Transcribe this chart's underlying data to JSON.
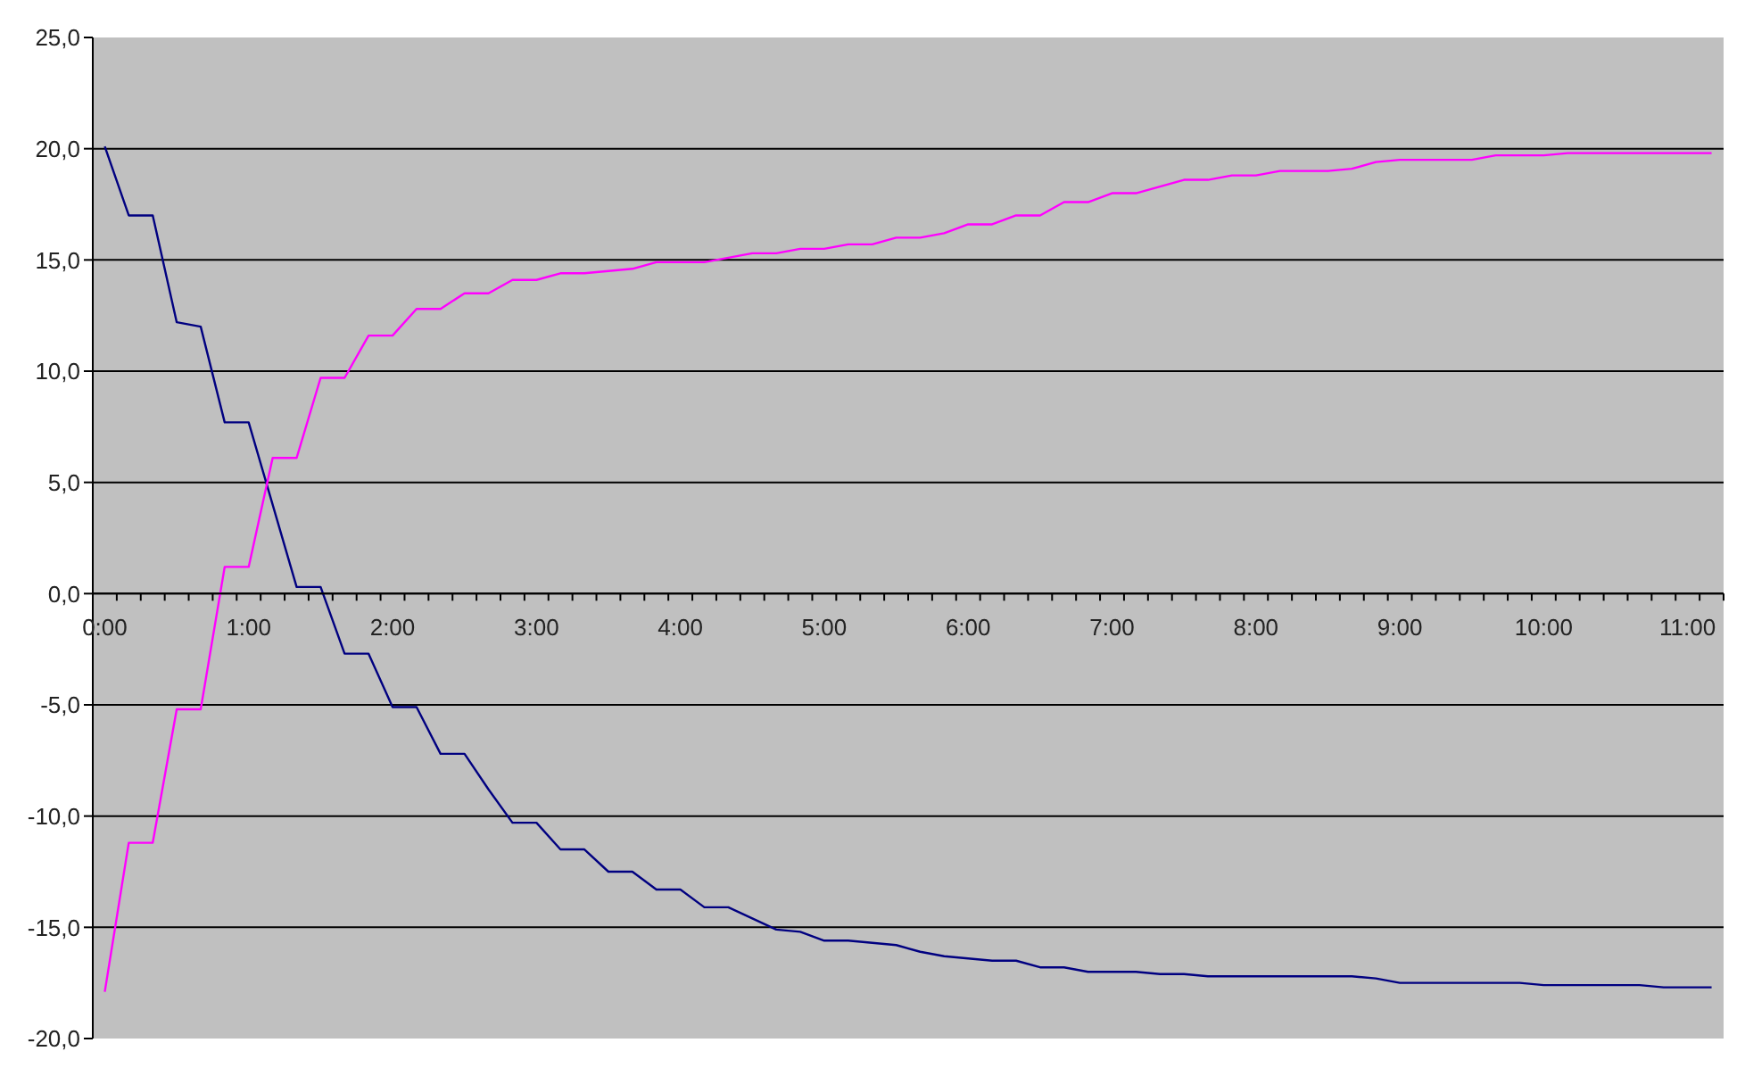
{
  "chart_data": {
    "type": "line",
    "categories": [
      "0:00",
      null,
      null,
      null,
      null,
      null,
      "1:00",
      null,
      null,
      null,
      null,
      null,
      "2:00",
      null,
      null,
      null,
      null,
      null,
      "3:00",
      null,
      null,
      null,
      null,
      null,
      "4:00",
      null,
      null,
      null,
      null,
      null,
      "5:00",
      null,
      null,
      null,
      null,
      null,
      "6:00",
      null,
      null,
      null,
      null,
      null,
      "7:00",
      null,
      null,
      null,
      null,
      null,
      "8:00",
      null,
      null,
      null,
      null,
      null,
      "9:00",
      null,
      null,
      null,
      null,
      null,
      "10:00",
      null,
      null,
      null,
      null,
      null,
      "11:00",
      null
    ],
    "series": [
      {
        "color": "#000080",
        "values": [
          20.1,
          17.0,
          17.0,
          12.2,
          12.0,
          7.7,
          7.7,
          4.0,
          0.3,
          0.3,
          -2.7,
          -2.7,
          -5.1,
          -5.1,
          -7.2,
          -7.2,
          -8.8,
          -10.3,
          -10.3,
          -11.5,
          -11.5,
          -12.5,
          -12.5,
          -13.3,
          -13.3,
          -14.1,
          -14.1,
          -14.6,
          -15.1,
          -15.2,
          -15.6,
          -15.6,
          -15.7,
          -15.8,
          -16.1,
          -16.3,
          -16.4,
          -16.5,
          -16.5,
          -16.8,
          -16.8,
          -17.0,
          -17.0,
          -17.0,
          -17.1,
          -17.1,
          -17.2,
          -17.2,
          -17.2,
          -17.2,
          -17.2,
          -17.2,
          -17.2,
          -17.3,
          -17.5,
          -17.5,
          -17.5,
          -17.5,
          -17.5,
          -17.5,
          -17.6,
          -17.6,
          -17.6,
          -17.6,
          -17.6,
          -17.7,
          -17.7,
          -17.7
        ]
      },
      {
        "color": "#ff00ff",
        "values": [
          -17.9,
          -11.2,
          -11.2,
          -5.2,
          -5.2,
          1.2,
          1.2,
          6.1,
          6.1,
          9.7,
          9.7,
          11.6,
          11.6,
          12.8,
          12.8,
          13.5,
          13.5,
          14.1,
          14.1,
          14.4,
          14.4,
          14.5,
          14.6,
          14.9,
          14.9,
          14.9,
          15.1,
          15.3,
          15.3,
          15.5,
          15.5,
          15.7,
          15.7,
          16.0,
          16.0,
          16.2,
          16.6,
          16.6,
          17.0,
          17.0,
          17.6,
          17.6,
          18.0,
          18.0,
          18.3,
          18.6,
          18.6,
          18.8,
          18.8,
          19.0,
          19.0,
          19.0,
          19.1,
          19.4,
          19.5,
          19.5,
          19.5,
          19.5,
          19.7,
          19.7,
          19.7,
          19.8,
          19.8,
          19.8,
          19.8,
          19.8,
          19.8,
          19.8
        ]
      }
    ],
    "ylim": [
      -20,
      25
    ],
    "yticks": [
      {
        "value": -20,
        "label": "-20,0"
      },
      {
        "value": -15,
        "label": "-15,0"
      },
      {
        "value": -10,
        "label": "-10,0"
      },
      {
        "value": -5,
        "label": "-5,0"
      },
      {
        "value": 0,
        "label": "0,0"
      },
      {
        "value": 5,
        "label": "5,0"
      },
      {
        "value": 10,
        "label": "10,0"
      },
      {
        "value": 15,
        "label": "15,0"
      },
      {
        "value": 20,
        "label": "20,0"
      },
      {
        "value": 25,
        "label": "25,0"
      }
    ],
    "grid": "y",
    "marker": "none",
    "line_style": "solid"
  }
}
